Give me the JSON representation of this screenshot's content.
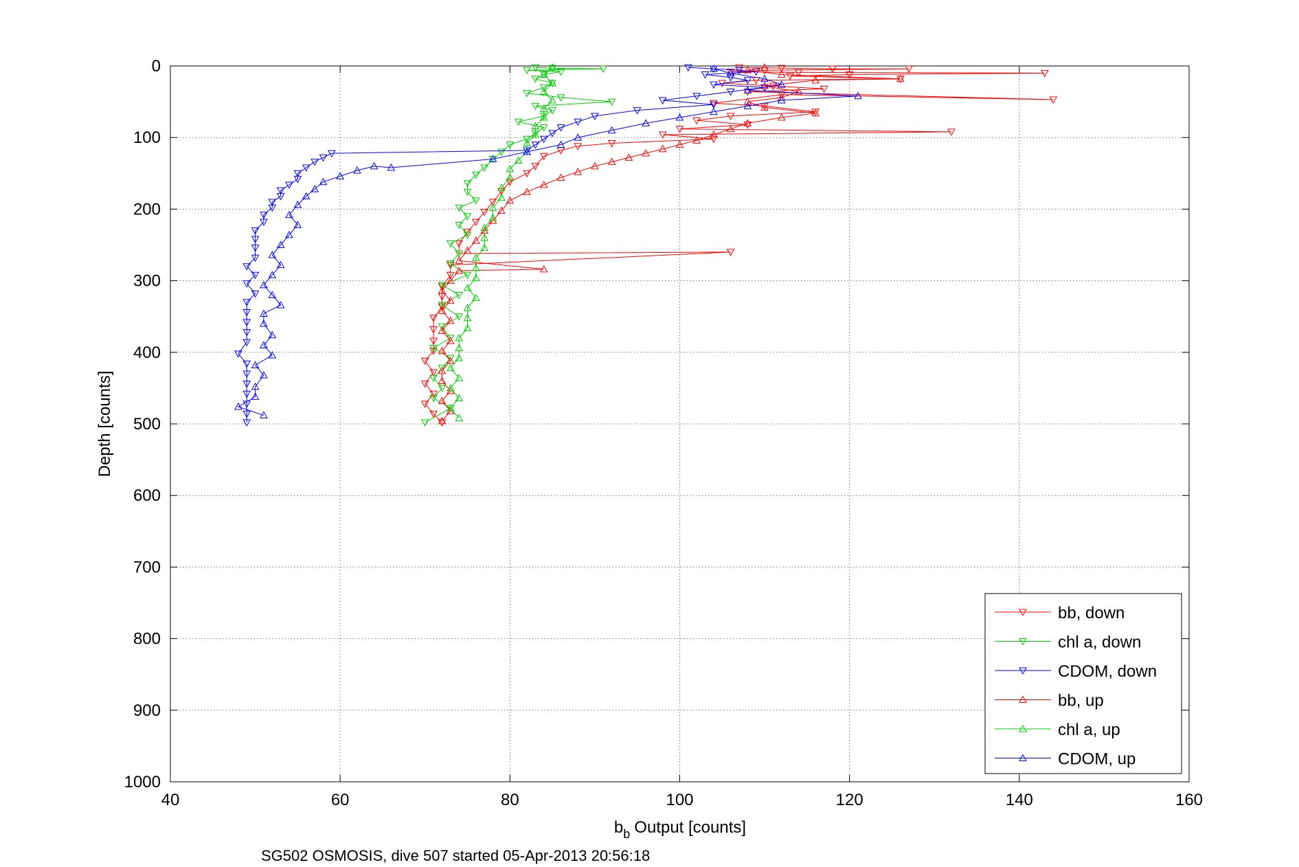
{
  "chart_data": {
    "type": "scatter",
    "title": "",
    "caption": "SG502 OSMOSIS, dive 507 started 05-Apr-2013 20:56:18",
    "xlabel": "Output [counts]",
    "xlabel_symbol": "b",
    "xlabel_subscript": "b",
    "ylabel": "Depth [counts]",
    "xlim": [
      40,
      160
    ],
    "ylim": [
      0,
      1000
    ],
    "y_reversed": true,
    "xticks": [
      "40",
      "60",
      "80",
      "100",
      "120",
      "140",
      "160"
    ],
    "yticks": [
      "0",
      "100",
      "200",
      "300",
      "400",
      "500",
      "600",
      "700",
      "800",
      "900",
      "1000"
    ],
    "grid": true,
    "legend_position": "bottom-right",
    "series": [
      {
        "name": "bb, down",
        "color": "#ff0000",
        "marker": "triangle-down",
        "points": [
          [
            107,
            2
          ],
          [
            112,
            3
          ],
          [
            118,
            4
          ],
          [
            127,
            4
          ],
          [
            110,
            6
          ],
          [
            106,
            8
          ],
          [
            114,
            9
          ],
          [
            143,
            10
          ],
          [
            120,
            12
          ],
          [
            113,
            14
          ],
          [
            126,
            18
          ],
          [
            109,
            20
          ],
          [
            105,
            24
          ],
          [
            111,
            28
          ],
          [
            117,
            32
          ],
          [
            108,
            36
          ],
          [
            144,
            47
          ],
          [
            112,
            40
          ],
          [
            104,
            52
          ],
          [
            110,
            56
          ],
          [
            116,
            64
          ],
          [
            106,
            70
          ],
          [
            102,
            76
          ],
          [
            108,
            82
          ],
          [
            100,
            88
          ],
          [
            132,
            92
          ],
          [
            98,
            96
          ],
          [
            104,
            102
          ],
          [
            92,
            108
          ],
          [
            88,
            112
          ],
          [
            86,
            118
          ],
          [
            84,
            126
          ],
          [
            83,
            140
          ],
          [
            82,
            150
          ],
          [
            80,
            162
          ],
          [
            79,
            175
          ],
          [
            78,
            190
          ],
          [
            77,
            204
          ],
          [
            76,
            218
          ],
          [
            75,
            232
          ],
          [
            74,
            248
          ],
          [
            74,
            262
          ],
          [
            106,
            260
          ],
          [
            73,
            278
          ],
          [
            73,
            292
          ],
          [
            72,
            308
          ],
          [
            72,
            322
          ],
          [
            72,
            336
          ],
          [
            71,
            352
          ],
          [
            71,
            368
          ],
          [
            71,
            384
          ],
          [
            71,
            398
          ],
          [
            70,
            412
          ],
          [
            71,
            428
          ],
          [
            70,
            444
          ],
          [
            71,
            458
          ],
          [
            70,
            472
          ],
          [
            71,
            486
          ],
          [
            72,
            498
          ]
        ]
      },
      {
        "name": "chl a, down",
        "color": "#00cc00",
        "marker": "triangle-down",
        "points": [
          [
            83,
            2
          ],
          [
            85,
            3
          ],
          [
            91,
            4
          ],
          [
            82,
            6
          ],
          [
            86,
            8
          ],
          [
            84,
            12
          ],
          [
            83,
            18
          ],
          [
            85,
            24
          ],
          [
            84,
            30
          ],
          [
            82,
            38
          ],
          [
            86,
            44
          ],
          [
            92,
            50
          ],
          [
            83,
            56
          ],
          [
            85,
            62
          ],
          [
            84,
            70
          ],
          [
            81,
            78
          ],
          [
            84,
            86
          ],
          [
            83,
            94
          ],
          [
            82,
            102
          ],
          [
            80,
            110
          ],
          [
            79,
            120
          ],
          [
            78,
            130
          ],
          [
            77,
            142
          ],
          [
            76,
            152
          ],
          [
            75,
            164
          ],
          [
            75,
            176
          ],
          [
            76,
            188
          ],
          [
            74,
            198
          ],
          [
            75,
            210
          ],
          [
            74,
            222
          ],
          [
            75,
            236
          ],
          [
            73,
            248
          ],
          [
            74,
            262
          ],
          [
            73,
            276
          ],
          [
            75,
            292
          ],
          [
            72,
            306
          ],
          [
            74,
            320
          ],
          [
            72,
            334
          ],
          [
            74,
            350
          ],
          [
            72,
            364
          ],
          [
            73,
            380
          ],
          [
            71,
            394
          ],
          [
            73,
            408
          ],
          [
            72,
            422
          ],
          [
            71,
            436
          ],
          [
            72,
            450
          ],
          [
            71,
            464
          ],
          [
            73,
            478
          ],
          [
            70,
            498
          ]
        ]
      },
      {
        "name": "CDOM, down",
        "color": "#0000ff",
        "marker": "triangle-down",
        "points": [
          [
            101,
            2
          ],
          [
            104,
            4
          ],
          [
            107,
            6
          ],
          [
            109,
            8
          ],
          [
            103,
            12
          ],
          [
            106,
            16
          ],
          [
            108,
            20
          ],
          [
            104,
            26
          ],
          [
            110,
            30
          ],
          [
            106,
            36
          ],
          [
            102,
            42
          ],
          [
            98,
            48
          ],
          [
            104,
            54
          ],
          [
            95,
            62
          ],
          [
            90,
            70
          ],
          [
            88,
            78
          ],
          [
            86,
            86
          ],
          [
            85,
            94
          ],
          [
            84,
            102
          ],
          [
            83,
            110
          ],
          [
            82,
            118
          ],
          [
            59,
            122
          ],
          [
            58,
            128
          ],
          [
            57,
            134
          ],
          [
            56,
            142
          ],
          [
            55,
            150
          ],
          [
            55,
            158
          ],
          [
            54,
            166
          ],
          [
            53,
            174
          ],
          [
            53,
            182
          ],
          [
            52,
            190
          ],
          [
            52,
            198
          ],
          [
            51,
            208
          ],
          [
            51,
            218
          ],
          [
            50,
            230
          ],
          [
            50,
            242
          ],
          [
            50,
            254
          ],
          [
            50,
            268
          ],
          [
            49,
            280
          ],
          [
            50,
            292
          ],
          [
            49,
            304
          ],
          [
            50,
            318
          ],
          [
            49,
            330
          ],
          [
            49,
            344
          ],
          [
            49,
            358
          ],
          [
            49,
            372
          ],
          [
            49,
            386
          ],
          [
            48,
            402
          ],
          [
            49,
            416
          ],
          [
            49,
            430
          ],
          [
            49,
            444
          ],
          [
            49,
            458
          ],
          [
            49,
            472
          ],
          [
            49,
            486
          ],
          [
            49,
            498
          ]
        ]
      },
      {
        "name": "bb, up",
        "color": "#ff0000",
        "marker": "triangle-up",
        "points": [
          [
            72,
            496
          ],
          [
            73,
            482
          ],
          [
            72,
            468
          ],
          [
            73,
            454
          ],
          [
            72,
            440
          ],
          [
            72,
            426
          ],
          [
            73,
            412
          ],
          [
            72,
            398
          ],
          [
            73,
            384
          ],
          [
            72,
            370
          ],
          [
            73,
            356
          ],
          [
            72,
            342
          ],
          [
            73,
            328
          ],
          [
            72,
            314
          ],
          [
            73,
            300
          ],
          [
            74,
            286
          ],
          [
            84,
            284
          ],
          [
            74,
            272
          ],
          [
            75,
            258
          ],
          [
            76,
            244
          ],
          [
            77,
            230
          ],
          [
            78,
            216
          ],
          [
            79,
            202
          ],
          [
            80,
            188
          ],
          [
            82,
            176
          ],
          [
            84,
            166
          ],
          [
            86,
            156
          ],
          [
            88,
            148
          ],
          [
            90,
            140
          ],
          [
            92,
            134
          ],
          [
            94,
            128
          ],
          [
            96,
            122
          ],
          [
            98,
            116
          ],
          [
            100,
            110
          ],
          [
            102,
            104
          ],
          [
            104,
            96
          ],
          [
            106,
            88
          ],
          [
            108,
            80
          ],
          [
            112,
            72
          ],
          [
            116,
            66
          ],
          [
            110,
            58
          ],
          [
            108,
            50
          ],
          [
            112,
            44
          ],
          [
            114,
            36
          ],
          [
            110,
            28
          ],
          [
            116,
            20
          ],
          [
            126,
            18
          ],
          [
            112,
            12
          ],
          [
            108,
            6
          ],
          [
            110,
            2
          ]
        ]
      },
      {
        "name": "chl a, up",
        "color": "#00cc00",
        "marker": "triangle-up",
        "points": [
          [
            74,
            492
          ],
          [
            73,
            478
          ],
          [
            74,
            464
          ],
          [
            73,
            450
          ],
          [
            74,
            436
          ],
          [
            73,
            422
          ],
          [
            74,
            408
          ],
          [
            74,
            394
          ],
          [
            74,
            380
          ],
          [
            75,
            366
          ],
          [
            75,
            352
          ],
          [
            75,
            338
          ],
          [
            76,
            324
          ],
          [
            75,
            310
          ],
          [
            76,
            296
          ],
          [
            76,
            282
          ],
          [
            76,
            268
          ],
          [
            77,
            254
          ],
          [
            77,
            240
          ],
          [
            77,
            226
          ],
          [
            78,
            212
          ],
          [
            78,
            198
          ],
          [
            79,
            184
          ],
          [
            79,
            170
          ],
          [
            80,
            156
          ],
          [
            80,
            144
          ],
          [
            81,
            132
          ],
          [
            82,
            120
          ],
          [
            82,
            108
          ],
          [
            83,
            96
          ],
          [
            83,
            84
          ],
          [
            84,
            72
          ],
          [
            84,
            60
          ],
          [
            85,
            48
          ],
          [
            84,
            36
          ],
          [
            85,
            24
          ],
          [
            84,
            12
          ],
          [
            85,
            2
          ]
        ]
      },
      {
        "name": "CDOM, up",
        "color": "#0000ff",
        "marker": "triangle-up",
        "points": [
          [
            51,
            488
          ],
          [
            48,
            476
          ],
          [
            50,
            462
          ],
          [
            50,
            448
          ],
          [
            51,
            432
          ],
          [
            50,
            418
          ],
          [
            52,
            404
          ],
          [
            51,
            390
          ],
          [
            52,
            376
          ],
          [
            51,
            360
          ],
          [
            51,
            346
          ],
          [
            53,
            334
          ],
          [
            52,
            320
          ],
          [
            51,
            306
          ],
          [
            52,
            292
          ],
          [
            53,
            278
          ],
          [
            52,
            264
          ],
          [
            53,
            250
          ],
          [
            54,
            236
          ],
          [
            55,
            222
          ],
          [
            54,
            208
          ],
          [
            55,
            194
          ],
          [
            56,
            182
          ],
          [
            57,
            172
          ],
          [
            58,
            162
          ],
          [
            60,
            154
          ],
          [
            62,
            146
          ],
          [
            64,
            140
          ],
          [
            66,
            142
          ],
          [
            78,
            130
          ],
          [
            82,
            120
          ],
          [
            86,
            110
          ],
          [
            88,
            100
          ],
          [
            92,
            90
          ],
          [
            96,
            80
          ],
          [
            100,
            72
          ],
          [
            104,
            64
          ],
          [
            108,
            56
          ],
          [
            112,
            48
          ],
          [
            121,
            42
          ],
          [
            108,
            34
          ],
          [
            112,
            26
          ],
          [
            110,
            18
          ],
          [
            106,
            10
          ],
          [
            104,
            4
          ]
        ]
      }
    ]
  }
}
